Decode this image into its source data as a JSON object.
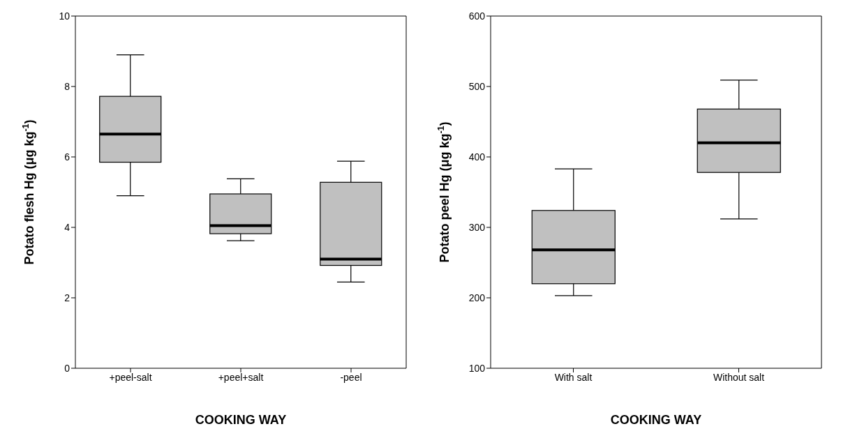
{
  "chart_data": [
    {
      "type": "box",
      "categories": [
        "+peel-salt",
        "+peel+salt",
        "-peel"
      ],
      "xlabel": "COOKING WAY",
      "ylabel": "Potato flesh Hg (μg kg$^{-1}$)",
      "ylim": [
        0,
        10
      ],
      "yticks": [
        0,
        2,
        4,
        6,
        8,
        10
      ],
      "color": "#c0c0c0",
      "grid": false,
      "boxes": [
        {
          "low": 4.9,
          "q1": 5.85,
          "median": 6.65,
          "q3": 7.72,
          "high": 8.9
        },
        {
          "low": 3.62,
          "q1": 3.82,
          "median": 4.05,
          "q3": 4.95,
          "high": 5.38
        },
        {
          "low": 2.45,
          "q1": 2.92,
          "median": 3.1,
          "q3": 5.28,
          "high": 5.88
        }
      ]
    },
    {
      "type": "box",
      "categories": [
        "With salt",
        "Without salt"
      ],
      "xlabel": "COOKING WAY",
      "ylabel": "Potato peel Hg (μg kg$^{-1}$)",
      "ylim": [
        100,
        600
      ],
      "yticks": [
        100,
        200,
        300,
        400,
        500,
        600
      ],
      "color": "#c0c0c0",
      "grid": false,
      "boxes": [
        {
          "low": 203,
          "q1": 220,
          "median": 268,
          "q3": 324,
          "high": 383
        },
        {
          "low": 312,
          "q1": 378,
          "median": 420,
          "q3": 468,
          "high": 509
        }
      ]
    }
  ]
}
